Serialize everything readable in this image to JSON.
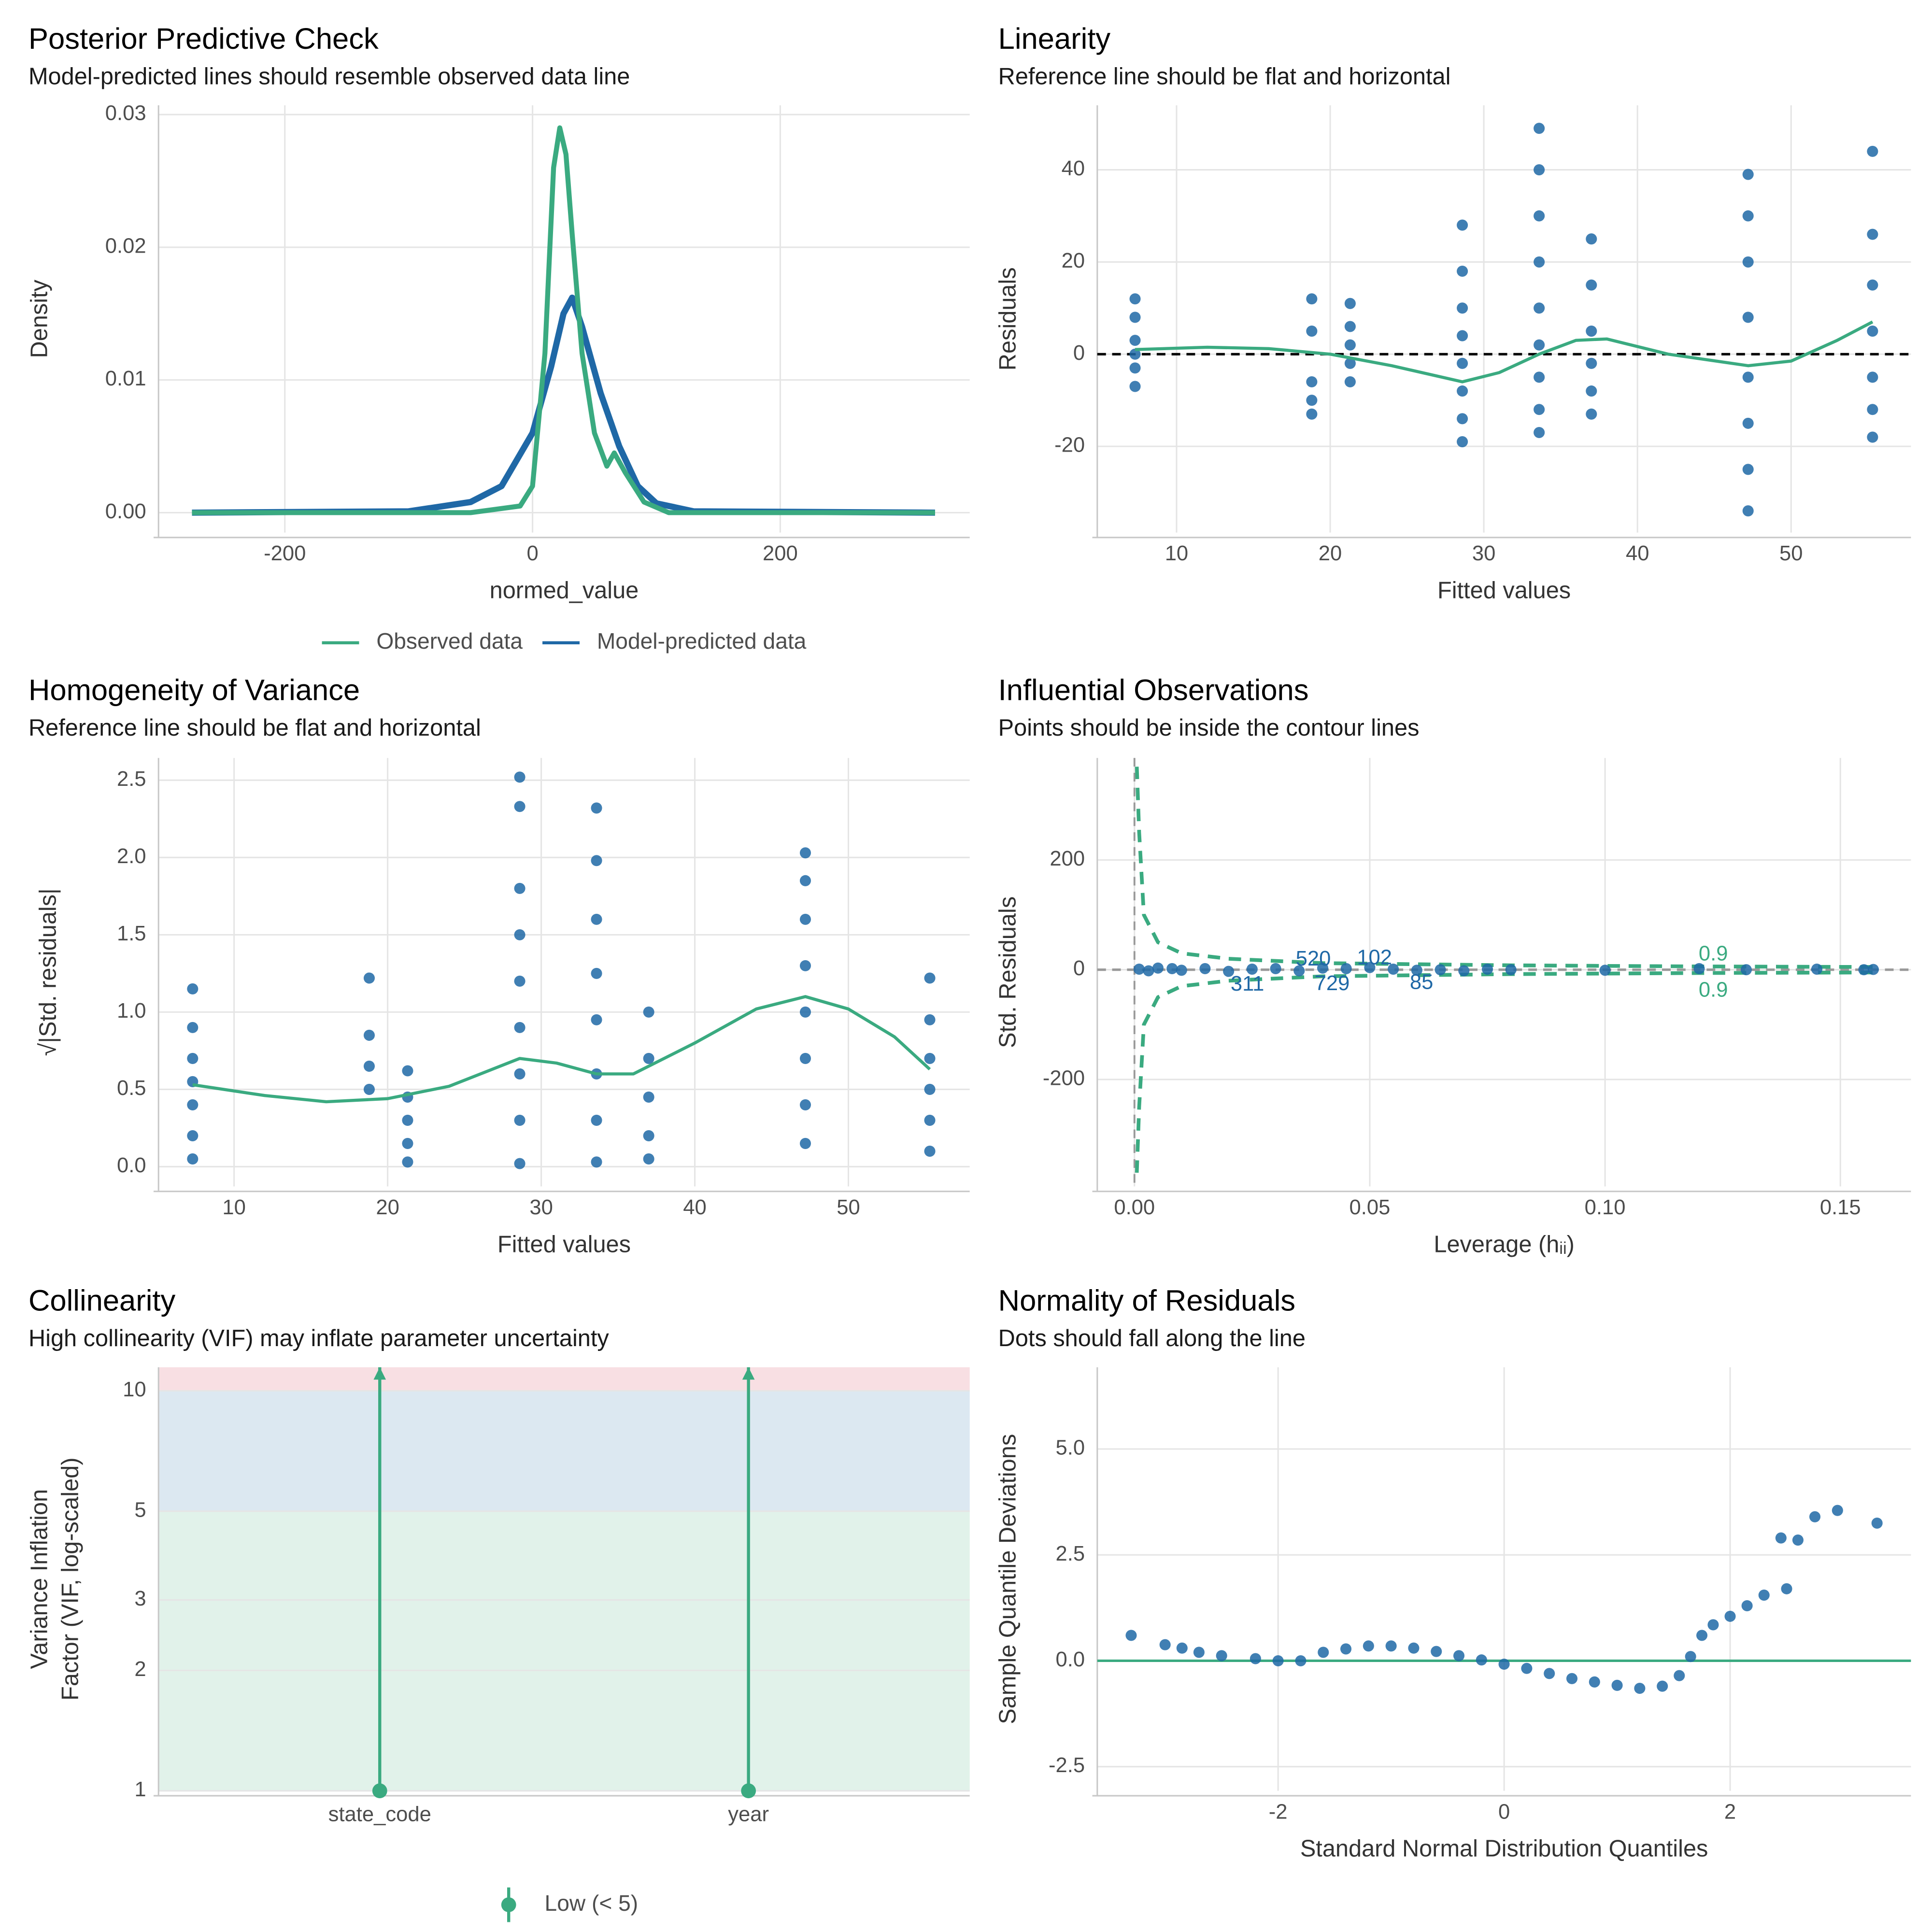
{
  "chart_data": [
    {
      "type": "line",
      "title": "Posterior Predictive Check",
      "subtitle": "Model-predicted lines should resemble observed data line",
      "x_label": "normed_value",
      "y_label": [
        "Density"
      ],
      "xlim": [
        -302,
        353
      ],
      "ylim": [
        -0.0015,
        0.0307
      ],
      "xticks": [
        -200,
        0,
        200
      ],
      "yticks": [
        {
          "value": 0,
          "label": "0.00"
        },
        {
          "value": 0.01,
          "label": "0.01"
        },
        {
          "value": 0.02,
          "label": "0.02"
        },
        {
          "value": 0.03,
          "label": "0.03"
        }
      ],
      "grid": true,
      "legend": "bottom",
      "series": [
        {
          "name": "Observed data",
          "color": "#3aaa80",
          "x": [
            -275,
            -50,
            -10,
            0,
            10,
            17,
            22,
            27,
            32,
            40,
            50,
            60,
            66,
            75,
            90,
            110,
            325
          ],
          "values": [
            0,
            0,
            0.0005,
            0.002,
            0.012,
            0.026,
            0.029,
            0.027,
            0.021,
            0.012,
            0.006,
            0.0035,
            0.0045,
            0.003,
            0.0008,
            0,
            0
          ]
        },
        {
          "name": "Model-predicted data",
          "color": "#1f68a6",
          "x": [
            -275,
            -100,
            -50,
            -25,
            0,
            15,
            25,
            32,
            40,
            55,
            70,
            85,
            100,
            130,
            325
          ],
          "values": [
            0,
            0.0001,
            0.0008,
            0.002,
            0.006,
            0.011,
            0.015,
            0.0162,
            0.014,
            0.009,
            0.005,
            0.002,
            0.0007,
            0.0001,
            0
          ]
        }
      ]
    },
    {
      "type": "scatter",
      "title": "Linearity",
      "subtitle": "Reference line should be flat and horizontal",
      "x_label": "Fitted values",
      "y_label": [
        "Residuals"
      ],
      "xlim": [
        4.84,
        57.8
      ],
      "ylim": [
        -38.7,
        54
      ],
      "xticks": [
        10,
        20,
        30,
        40,
        50
      ],
      "yticks": [
        -20,
        0,
        20,
        40
      ],
      "grid": true,
      "color": "#1f68a6",
      "points": {
        "x": [
          7.3,
          7.3,
          7.3,
          7.3,
          7.3,
          7.3,
          18.8,
          18.8,
          18.8,
          18.8,
          18.8,
          21.3,
          21.3,
          21.3,
          21.3,
          21.3,
          28.6,
          28.6,
          28.6,
          28.6,
          28.6,
          28.6,
          28.6,
          28.6,
          33.6,
          33.6,
          33.6,
          33.6,
          33.6,
          33.6,
          33.6,
          33.6,
          33.6,
          37,
          37,
          37,
          37,
          37,
          37,
          47.2,
          47.2,
          47.2,
          47.2,
          47.2,
          47.2,
          47.2,
          47.2,
          55.3,
          55.3,
          55.3,
          55.3,
          55.3,
          55.3,
          55.3
        ],
        "y": [
          12,
          8,
          3,
          0,
          -3,
          -7,
          12,
          5,
          -6,
          -10,
          -13,
          11,
          6,
          2,
          -2,
          -6,
          28,
          18,
          10,
          4,
          -2,
          -8,
          -14,
          -19,
          49,
          40,
          30,
          20,
          10,
          2,
          -5,
          -12,
          -17,
          25,
          15,
          5,
          -2,
          -8,
          -13,
          39,
          30,
          20,
          8,
          -5,
          -15,
          -25,
          -34,
          44,
          26,
          15,
          5,
          -5,
          -12,
          -18
        ]
      },
      "smooth": {
        "color": "#3aaa80",
        "x": [
          7.3,
          12,
          16,
          20,
          24,
          28.6,
          31,
          33.6,
          36,
          38,
          42,
          47.2,
          50,
          53,
          55.3
        ],
        "y": [
          1,
          1.5,
          1.2,
          0,
          -2.5,
          -6,
          -4,
          0,
          3,
          3.3,
          0,
          -2.5,
          -1.5,
          3,
          7
        ]
      },
      "reference_line": {
        "value": 0,
        "color": "#000000",
        "dashed": true
      }
    },
    {
      "type": "scatter",
      "title": "Homogeneity of Variance",
      "subtitle": "Reference line should be flat and horizontal",
      "x_label": "Fitted values",
      "y_label": [
        "√|Std. residuals|"
      ],
      "xlim": [
        5.08,
        57.9
      ],
      "ylim": [
        -0.128,
        2.644
      ],
      "xticks": [
        10,
        20,
        30,
        40,
        50
      ],
      "yticks": [
        {
          "value": 0,
          "label": "0.0"
        },
        0.5,
        {
          "value": 1,
          "label": "1.0"
        },
        1.5,
        {
          "value": 2,
          "label": "2.0"
        },
        2.5
      ],
      "grid": true,
      "color": "#1f68a6",
      "points": {
        "x": [
          7.3,
          7.3,
          7.3,
          7.3,
          7.3,
          7.3,
          7.3,
          18.8,
          18.8,
          18.8,
          18.8,
          21.3,
          21.3,
          21.3,
          21.3,
          21.3,
          28.6,
          28.6,
          28.6,
          28.6,
          28.6,
          28.6,
          28.6,
          28.6,
          28.6,
          33.6,
          33.6,
          33.6,
          33.6,
          33.6,
          33.6,
          33.6,
          33.6,
          37,
          37,
          37,
          37,
          37,
          47.2,
          47.2,
          47.2,
          47.2,
          47.2,
          47.2,
          47.2,
          47.2,
          55.3,
          55.3,
          55.3,
          55.3,
          55.3,
          55.3
        ],
        "y": [
          1.15,
          0.9,
          0.7,
          0.55,
          0.4,
          0.2,
          0.05,
          1.22,
          0.85,
          0.65,
          0.5,
          0.62,
          0.45,
          0.3,
          0.15,
          0.03,
          2.52,
          2.33,
          1.8,
          1.5,
          1.2,
          0.9,
          0.6,
          0.3,
          0.02,
          2.32,
          1.98,
          1.6,
          1.25,
          0.95,
          0.6,
          0.3,
          0.03,
          1.0,
          0.7,
          0.45,
          0.2,
          0.05,
          2.03,
          1.85,
          1.6,
          1.3,
          1.0,
          0.7,
          0.4,
          0.15,
          1.22,
          0.95,
          0.7,
          0.5,
          0.3,
          0.1
        ]
      },
      "smooth": {
        "color": "#3aaa80",
        "x": [
          7.3,
          12,
          16,
          20,
          24,
          28.6,
          31,
          33.6,
          36,
          40,
          44,
          47.2,
          50,
          53,
          55.3
        ],
        "y": [
          0.53,
          0.46,
          0.42,
          0.44,
          0.52,
          0.7,
          0.67,
          0.6,
          0.6,
          0.8,
          1.02,
          1.1,
          1.02,
          0.84,
          0.63
        ]
      }
    },
    {
      "type": "scatter",
      "title": "Influential Observations",
      "subtitle": "Points should be inside the contour lines",
      "x_label": "Leverage (hᵢᵢ)",
      "y_label": [
        "Std. Residuals"
      ],
      "xlim": [
        -0.0079,
        0.165
      ],
      "ylim": [
        -395,
        386
      ],
      "xticks": [
        {
          "value": 0,
          "label": "0.00"
        },
        0.05,
        {
          "value": 0.1,
          "label": "0.10"
        },
        0.15
      ],
      "yticks": [
        -200,
        0,
        200
      ],
      "grid": true,
      "color": "#1f68a6",
      "points": {
        "x": [
          0.001,
          0.003,
          0.005,
          0.008,
          0.01,
          0.015,
          0.02,
          0.025,
          0.03,
          0.035,
          0.04,
          0.045,
          0.05,
          0.055,
          0.06,
          0.065,
          0.07,
          0.075,
          0.08,
          0.1,
          0.12,
          0.13,
          0.145,
          0.155,
          0.157
        ],
        "y": [
          1,
          -2,
          3,
          2,
          -1,
          2,
          -3,
          1,
          2,
          -2,
          3,
          2,
          4,
          1,
          -1,
          0,
          -2,
          1,
          0,
          -1,
          2,
          0,
          1,
          0,
          0.5
        ]
      },
      "contours": {
        "color": "#3aaa80",
        "x": [
          0.0005,
          0.001,
          0.002,
          0.005,
          0.01,
          0.02,
          0.04,
          0.08,
          0.12,
          0.157
        ],
        "upper": [
          370,
          250,
          100,
          50,
          30,
          20,
          12,
          8,
          6,
          5
        ],
        "lower": [
          -370,
          -250,
          -100,
          -50,
          -30,
          -20,
          -12,
          -8,
          -6,
          -5
        ]
      },
      "point_labels": [
        {
          "label": "520",
          "x": 0.038,
          "y": 18,
          "color": "#1f68a6"
        },
        {
          "label": "102",
          "x": 0.051,
          "y": 20,
          "color": "#1f68a6"
        },
        {
          "label": "311",
          "x": 0.024,
          "y": -28,
          "color": "#1f68a6"
        },
        {
          "label": "729",
          "x": 0.042,
          "y": -27,
          "color": "#1f68a6"
        },
        {
          "label": "85",
          "x": 0.061,
          "y": -25,
          "color": "#1f68a6"
        },
        {
          "label": "0.9",
          "x": 0.123,
          "y": 27,
          "color": "#3aaa80"
        },
        {
          "label": "0.9",
          "x": 0.123,
          "y": -39,
          "color": "#3aaa80"
        }
      ],
      "reference_line": {
        "value": 0,
        "color": "#999999",
        "dashed": true
      },
      "reference_x": {
        "value": 0,
        "color": "#999999",
        "dashed": true
      }
    },
    {
      "type": "interval",
      "title": "Collinearity",
      "subtitle": "High collinearity (VIF) may inflate parameter uncertainty",
      "y_label": [
        "Variance Inflation",
        "Factor (VIF, log-scaled)"
      ],
      "log_y": true,
      "ylim": [
        1,
        11.45
      ],
      "yticks": [
        1,
        2,
        3,
        5,
        10
      ],
      "grid": true,
      "legend": "bottom",
      "categories": [
        "state_code",
        "year"
      ],
      "bands": [
        {
          "from": 1,
          "to": 5,
          "color": "#e1f2ea"
        },
        {
          "from": 5,
          "to": 10,
          "color": "#dce8f1"
        },
        {
          "from": 10,
          "to": 11.45,
          "color": "#f8dfe3"
        }
      ],
      "series": [
        {
          "name": "Low (< 5)",
          "color": "#3aaa80",
          "values": [
            1,
            1
          ],
          "ci_high": [
            11.45,
            11.45
          ]
        }
      ]
    },
    {
      "type": "scatter",
      "title": "Normality of Residuals",
      "subtitle": "Dots should fall along the line",
      "x_label": "Standard Normal Distribution Quantiles",
      "y_label": [
        "Sample Quantile Deviations"
      ],
      "xlim": [
        -3.6,
        3.6
      ],
      "ylim": [
        -3.07,
        6.93
      ],
      "xticks": [
        -2,
        0,
        2
      ],
      "yticks": [
        -2.5,
        {
          "value": 0,
          "label": "0.0"
        },
        2.5,
        {
          "value": 5,
          "label": "5.0"
        }
      ],
      "grid": true,
      "color": "#1f68a6",
      "points": {
        "x": [
          -3.3,
          -3.0,
          -2.85,
          -2.7,
          -2.5,
          -2.2,
          -2.0,
          -1.8,
          -1.6,
          -1.4,
          -1.2,
          -1.0,
          -0.8,
          -0.6,
          -0.4,
          -0.2,
          0,
          0.2,
          0.4,
          0.6,
          0.8,
          1.0,
          1.2,
          1.4,
          1.55,
          1.65,
          1.75,
          1.85,
          2.0,
          2.15,
          2.3,
          2.5,
          2.45,
          2.6,
          2.75,
          2.95,
          3.3
        ],
        "y": [
          0.6,
          0.38,
          0.3,
          0.2,
          0.12,
          0.05,
          0.0,
          0.0,
          0.2,
          0.28,
          0.35,
          0.35,
          0.3,
          0.22,
          0.12,
          0.02,
          -0.08,
          -0.18,
          -0.3,
          -0.42,
          -0.5,
          -0.58,
          -0.65,
          -0.6,
          -0.35,
          0.1,
          0.6,
          0.85,
          1.05,
          1.3,
          1.55,
          1.7,
          2.9,
          2.85,
          3.4,
          3.55,
          3.25
        ]
      },
      "reference_line": {
        "value": 0,
        "color": "#3aaa80",
        "dashed": false
      }
    }
  ]
}
